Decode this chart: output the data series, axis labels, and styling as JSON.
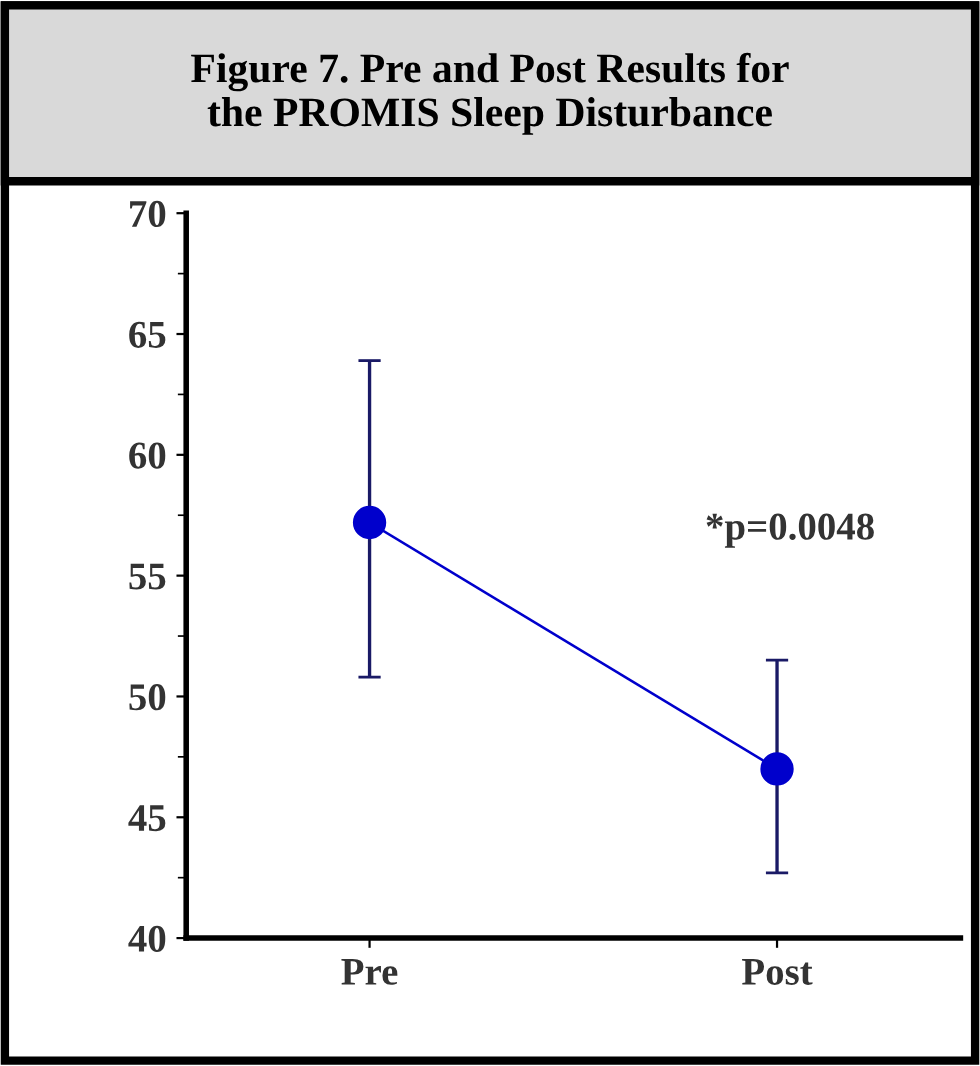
{
  "chart_data": {
    "type": "line",
    "title": "Figure 7. Pre and Post Results for\nthe PROMIS Sleep Disturbance",
    "categories": [
      "Pre",
      "Post"
    ],
    "series": [
      {
        "color": "#0000cc",
        "values": [
          57.2,
          47.0
        ],
        "errors": [
          [
            50.8,
            63.9
          ],
          [
            42.7,
            51.5
          ]
        ]
      }
    ],
    "ylim": [
      40,
      70
    ],
    "yticks": [
      40,
      45,
      50,
      55,
      60,
      65,
      70
    ],
    "grid": false,
    "marker": "circle",
    "line_style": "solid",
    "annotations": [
      "*p=0.0048"
    ]
  }
}
